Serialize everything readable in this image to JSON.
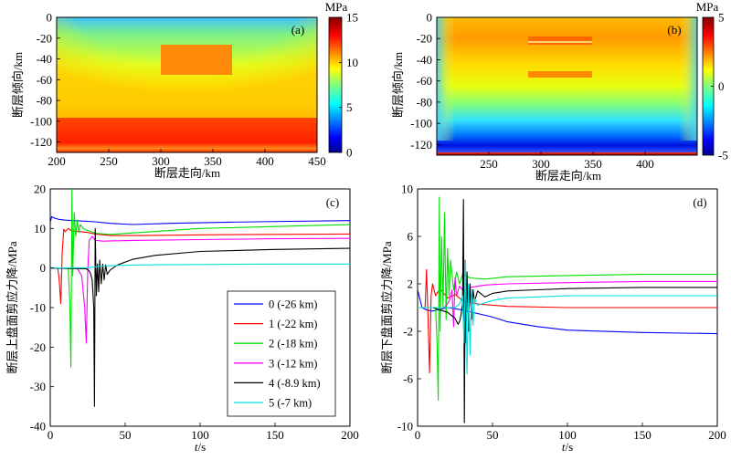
{
  "panels": {
    "a": {
      "label": "(a)",
      "ylabel": "断层倾向/km",
      "xlabel": "断层走向/km",
      "xticks": [
        "200",
        "250",
        "300",
        "350",
        "400",
        "450"
      ],
      "yticks": [
        "0",
        "-20",
        "-40",
        "-60",
        "-80",
        "-100",
        "-120"
      ],
      "colorbar_unit": "MPa",
      "colorbar_ticks": [
        "15",
        "10",
        "5",
        "0"
      ]
    },
    "b": {
      "label": "(b)",
      "ylabel": "断层倾向/km",
      "xlabel": "断层走向/km",
      "xticks": [
        "250",
        "300",
        "350",
        "400"
      ],
      "yticks": [
        "0",
        "-20",
        "-40",
        "-60",
        "-80",
        "-100",
        "-120"
      ],
      "colorbar_unit": "MPa",
      "colorbar_ticks": [
        "5",
        "0",
        "-5"
      ]
    },
    "c": {
      "label": "(c)",
      "ylabel": "断层上盘面剪应力降/MPa",
      "xlabel_italic": "t",
      "xlabel_rest": "/s",
      "xticks": [
        "0",
        "50",
        "100",
        "150",
        "200"
      ],
      "yticks": [
        "20",
        "10",
        "0",
        "-10",
        "-20",
        "-30",
        "-40"
      ]
    },
    "d": {
      "label": "(d)",
      "ylabel": "断层下盘面剪应力降/MPa",
      "xlabel_italic": "t",
      "xlabel_rest": "/s",
      "xticks": [
        "0",
        "50",
        "100",
        "150",
        "200"
      ],
      "yticks": [
        "10",
        "6",
        "2",
        "-2",
        "-6",
        "-10"
      ]
    }
  },
  "legend": [
    {
      "label": "0 (-26 km)",
      "color": "#0000ff"
    },
    {
      "label": "1 (-22 km)",
      "color": "#ff0000"
    },
    {
      "label": "2 (-18 km)",
      "color": "#00e000"
    },
    {
      "label": "3 (-12 km)",
      "color": "#ff00ff"
    },
    {
      "label": "4 (-8.9 km)",
      "color": "#000000"
    },
    {
      "label": "5 (-7 km)",
      "color": "#00e0e0"
    }
  ],
  "chart_data": [
    {
      "type": "heatmap",
      "title": "(a)",
      "xlabel": "断层走向/km",
      "ylabel": "断层倾向/km",
      "xlim": [
        200,
        450
      ],
      "ylim": [
        -130,
        0
      ],
      "colorbar": {
        "unit": "MPa",
        "range": [
          0,
          15
        ]
      },
      "layers": [
        {
          "region": "top",
          "value": 6
        },
        {
          "region": "mid",
          "value": 9
        },
        {
          "region": "lower",
          "value": 11
        },
        {
          "region": "bottom",
          "value": 13.5
        }
      ],
      "patch": {
        "x": [
          290,
          360
        ],
        "y": [
          -56,
          -26
        ],
        "value": 13
      }
    },
    {
      "type": "heatmap",
      "title": "(b)",
      "xlabel": "断层走向/km",
      "ylabel": "断层倾向/km",
      "xlim": [
        200,
        450
      ],
      "ylim": [
        -130,
        0
      ],
      "colorbar": {
        "unit": "MPa",
        "range": [
          -5,
          5
        ]
      },
      "profile_depth": [
        0,
        -20,
        -40,
        -60,
        -80,
        -100,
        -120,
        -130
      ],
      "profile_values": [
        3,
        3.3,
        3,
        2.3,
        1.2,
        0,
        -3.5,
        -4.5
      ]
    },
    {
      "type": "line",
      "title": "(c)",
      "xlabel": "t/s",
      "ylabel": "断层上盘面剪应力降/MPa",
      "xlim": [
        0,
        200
      ],
      "ylim": [
        -40,
        20
      ],
      "series": [
        {
          "name": "0 (-26 km)",
          "x": [
            0,
            1,
            3,
            6,
            10,
            20,
            30,
            40,
            55,
            80,
            120,
            160,
            200
          ],
          "y": [
            11.5,
            13,
            12.6,
            12.3,
            12.1,
            11.9,
            11.7,
            11.3,
            11.0,
            11.3,
            11.6,
            11.8,
            12.0
          ]
        },
        {
          "name": "1 (-22 km)",
          "x": [
            0,
            5,
            6,
            7,
            8,
            9,
            10,
            12,
            14,
            16,
            18,
            20,
            25,
            30,
            40,
            60,
            100,
            150,
            200
          ],
          "y": [
            0,
            0,
            -3,
            -9,
            4,
            9.8,
            9.2,
            10,
            9.5,
            9.4,
            9.3,
            9.2,
            9.0,
            8.6,
            8.2,
            8.2,
            8.4,
            8.5,
            8.6
          ]
        },
        {
          "name": "2 (-18 km)",
          "x": [
            0,
            12,
            13,
            13.8,
            14.5,
            15,
            16,
            17,
            18,
            19,
            20,
            22,
            25,
            30,
            40,
            60,
            100,
            150,
            200
          ],
          "y": [
            0,
            0,
            -8,
            -25,
            20,
            -2,
            14,
            8,
            12,
            9,
            11,
            10,
            9.5,
            8.8,
            8.5,
            9,
            10,
            10.5,
            11
          ]
        },
        {
          "name": "3 (-12 km)",
          "x": [
            0,
            18,
            21,
            23,
            24,
            25,
            26,
            28,
            30,
            35,
            45,
            60,
            100,
            150,
            200
          ],
          "y": [
            0,
            0,
            -2,
            -10,
            -19,
            -1,
            7,
            8,
            7,
            6.8,
            6.9,
            7.0,
            7.2,
            7.4,
            7.5
          ]
        },
        {
          "name": "4 (-8.9 km)",
          "x": [
            0,
            24,
            26,
            27,
            28,
            29,
            29.5,
            30,
            30.8,
            31.5,
            32.3,
            33,
            34,
            35,
            36,
            37,
            38,
            40,
            45,
            55,
            70,
            100,
            150,
            200
          ],
          "y": [
            0,
            -0.2,
            -0.7,
            -1.5,
            -3,
            -10,
            -35,
            10,
            -7,
            1,
            -6,
            2,
            -4,
            1,
            -3,
            0.8,
            -1.6,
            -0.5,
            0.8,
            2.2,
            3.2,
            4.2,
            4.7,
            5.0
          ]
        },
        {
          "name": "5 (-7 km)",
          "x": [
            0,
            25,
            30,
            35,
            40,
            60,
            100,
            150,
            200
          ],
          "y": [
            0,
            0.1,
            0.3,
            0.5,
            0.6,
            0.8,
            0.9,
            1.0,
            1.0
          ]
        }
      ]
    },
    {
      "type": "line",
      "title": "(d)",
      "xlabel": "t/s",
      "ylabel": "断层下盘面剪应力降/MPa",
      "xlim": [
        0,
        200
      ],
      "ylim": [
        -10,
        10
      ],
      "series": [
        {
          "name": "0 (-26 km)",
          "x": [
            0,
            3,
            6,
            10,
            20,
            30,
            40,
            50,
            60,
            80,
            100,
            150,
            200
          ],
          "y": [
            1.5,
            0,
            -0.2,
            -0.3,
            0,
            -0.2,
            -0.5,
            -0.8,
            -1.2,
            -1.6,
            -1.9,
            -2.1,
            -2.2
          ]
        },
        {
          "name": "1 (-22 km)",
          "x": [
            0,
            5,
            6,
            7,
            8,
            9,
            10,
            12,
            15,
            20,
            25,
            30,
            40,
            60,
            100,
            150,
            200
          ],
          "y": [
            0,
            0,
            3.2,
            -1,
            -5.5,
            1,
            2,
            1,
            1.6,
            0.8,
            1.1,
            0.6,
            0.3,
            0.1,
            0.0,
            0.0,
            0.0
          ]
        },
        {
          "name": "2 (-18 km)",
          "x": [
            0,
            12,
            13,
            13.8,
            14.5,
            15,
            16,
            17,
            18,
            19,
            20,
            21,
            22,
            24,
            26,
            28,
            30,
            35,
            45,
            60,
            100,
            150,
            200
          ],
          "y": [
            0,
            0,
            -3,
            -7.8,
            9.3,
            -2,
            6,
            0,
            8,
            -1,
            5,
            1,
            4,
            1.5,
            3,
            2,
            2.8,
            2.5,
            2.4,
            2.6,
            2.7,
            2.8,
            2.8
          ]
        },
        {
          "name": "3 (-12 km)",
          "x": [
            0,
            18,
            21,
            23,
            24,
            25,
            26,
            28,
            30,
            35,
            45,
            60,
            100,
            150,
            200
          ],
          "y": [
            0,
            0,
            0.5,
            1.5,
            -1.6,
            2.5,
            1,
            1.8,
            1.5,
            1.7,
            1.9,
            2.0,
            2.1,
            2.2,
            2.2
          ]
        },
        {
          "name": "4 (-8.9 km)",
          "x": [
            0,
            10,
            20,
            25,
            27,
            28,
            29,
            30,
            30.6,
            31.2,
            31.8,
            32.4,
            33,
            34,
            35,
            36,
            37,
            38,
            40,
            45,
            50,
            60,
            80,
            100,
            150,
            200
          ],
          "y": [
            0,
            0,
            -0.4,
            -0.9,
            -1.4,
            -1.2,
            -0.6,
            0.3,
            9.1,
            -9.7,
            4,
            -3,
            3,
            -2,
            2,
            -1,
            1.5,
            0.5,
            1.4,
            0.9,
            1.2,
            1.4,
            1.5,
            1.6,
            1.7,
            1.7
          ]
        },
        {
          "name": "5 (-7 km)",
          "x": [
            0,
            25,
            28,
            30,
            31,
            32,
            33,
            34,
            35,
            36,
            37,
            38,
            40,
            45,
            50,
            60,
            80,
            100,
            150,
            200
          ],
          "y": [
            0,
            0,
            0.3,
            1,
            -3,
            4,
            -5.6,
            2,
            -4,
            1.5,
            -1.5,
            0.8,
            0.2,
            0.4,
            0.6,
            0.8,
            0.9,
            1.0,
            1.0,
            1.0
          ]
        }
      ]
    }
  ]
}
